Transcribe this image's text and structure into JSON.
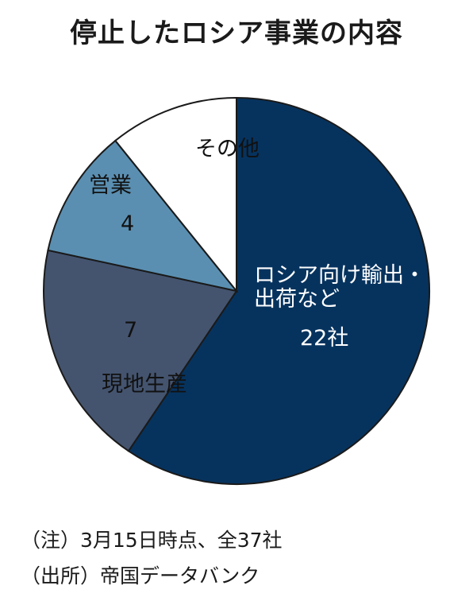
{
  "chart_data": {
    "type": "pie",
    "title": "停止したロシア事業の内容",
    "slices": [
      {
        "label_lines": [
          "ロシア向け輸出・",
          "出荷など"
        ],
        "value": 22,
        "value_label": "22社",
        "color": "#06335e",
        "text_color": "#ffffff"
      },
      {
        "label_lines": [
          "現地生産"
        ],
        "value": 7,
        "value_label": "7",
        "color": "#44546f",
        "text_color": "#111111"
      },
      {
        "label_lines": [
          "営業"
        ],
        "value": 4,
        "value_label": "4",
        "color": "#5a8fb1",
        "text_color": "#111111"
      },
      {
        "label_lines": [
          "その他"
        ],
        "value": 4,
        "value_label": "",
        "color": "#ffffff",
        "text_color": "#111111"
      }
    ],
    "total_label": "全37社"
  },
  "notes": {
    "note1": "（注）3月15日時点、全37社",
    "note2": "（出所）帝国データバンク"
  }
}
